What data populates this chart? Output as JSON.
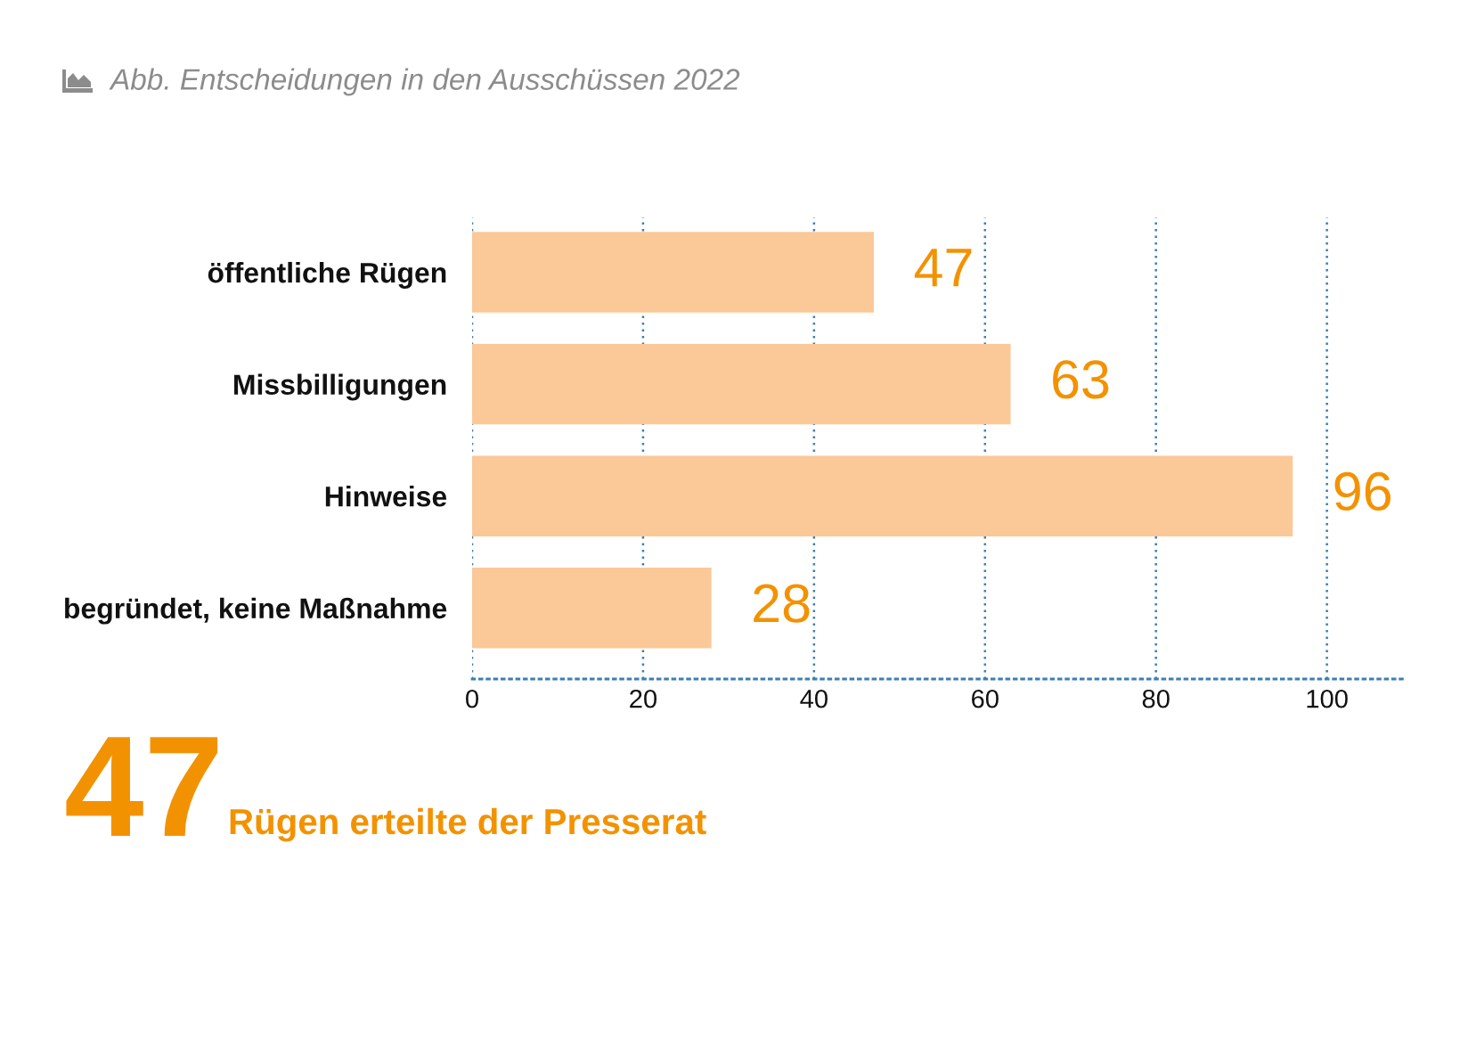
{
  "chart_data": {
    "type": "bar",
    "orientation": "horizontal",
    "title": "Abb. Entscheidungen in den Ausschüssen 2022",
    "categories": [
      "öffentliche Rügen",
      "Missbilligungen",
      "Hinweise",
      "begründet, keine Maßnahme"
    ],
    "values": [
      47,
      63,
      96,
      28
    ],
    "color": "#fbc898",
    "data_labels": true,
    "xlim": [
      0,
      109
    ],
    "xticks": [
      0,
      20,
      40,
      60,
      80,
      100
    ],
    "grid": "x",
    "annotations": [
      "47",
      "Rügen erteilte der Presserat"
    ]
  }
}
